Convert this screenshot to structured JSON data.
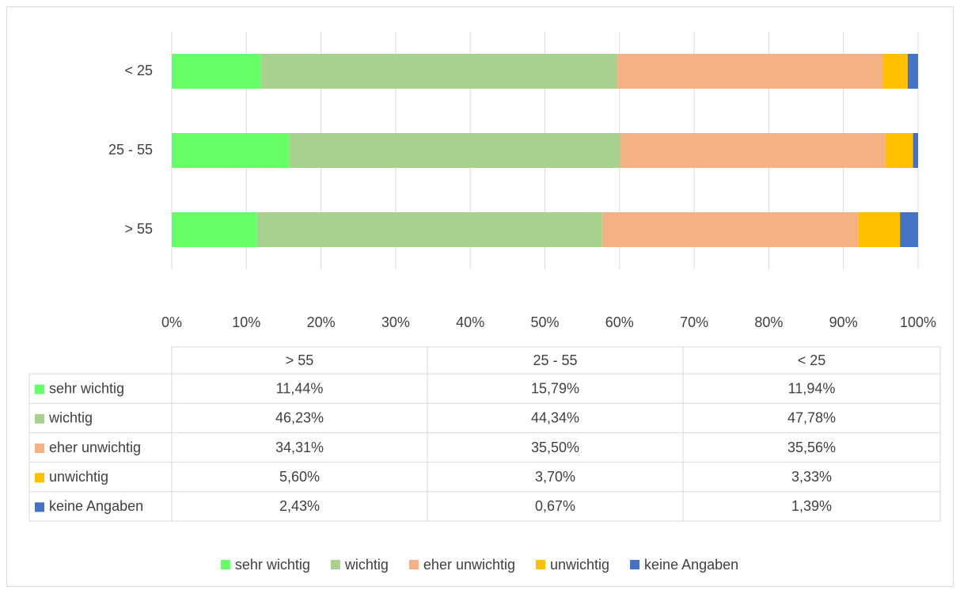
{
  "chart_data": {
    "type": "stacked_bar_horizontal",
    "categories": [
      "> 55",
      "25 - 55",
      "< 25"
    ],
    "series": [
      {
        "name": "sehr wichtig",
        "color": "#66ff66",
        "values": [
          11.44,
          15.79,
          11.94
        ],
        "value_labels": [
          "11,44%",
          "15,79%",
          "11,94%"
        ]
      },
      {
        "name": "wichtig",
        "color": "#a9d18e",
        "values": [
          46.23,
          44.34,
          47.78
        ],
        "value_labels": [
          "46,23%",
          "44,34%",
          "47,78%"
        ]
      },
      {
        "name": "eher unwichtig",
        "color": "#f4b183",
        "values": [
          34.31,
          35.5,
          35.56
        ],
        "value_labels": [
          "34,31%",
          "35,50%",
          "35,56%"
        ]
      },
      {
        "name": "unwichtig",
        "color": "#ffc000",
        "values": [
          5.6,
          3.7,
          3.33
        ],
        "value_labels": [
          "5,60%",
          "3,70%",
          "3,33%"
        ]
      },
      {
        "name": "keine Angaben",
        "color": "#4472c4",
        "values": [
          2.43,
          0.67,
          1.39
        ],
        "value_labels": [
          "2,43%",
          "0,67%",
          "1,39%"
        ]
      }
    ],
    "xlim": [
      0,
      100
    ],
    "xticks": [
      {
        "value": 0,
        "label": "0%"
      },
      {
        "value": 10,
        "label": "10%"
      },
      {
        "value": 20,
        "label": "20%"
      },
      {
        "value": 30,
        "label": "30%"
      },
      {
        "value": 40,
        "label": "40%"
      },
      {
        "value": 50,
        "label": "50%"
      },
      {
        "value": 60,
        "label": "60%"
      },
      {
        "value": 70,
        "label": "70%"
      },
      {
        "value": 80,
        "label": "80%"
      },
      {
        "value": 90,
        "label": "90%"
      },
      {
        "value": 100,
        "label": "100%"
      }
    ],
    "grid": true,
    "legend": "bottom",
    "data_table": true
  }
}
